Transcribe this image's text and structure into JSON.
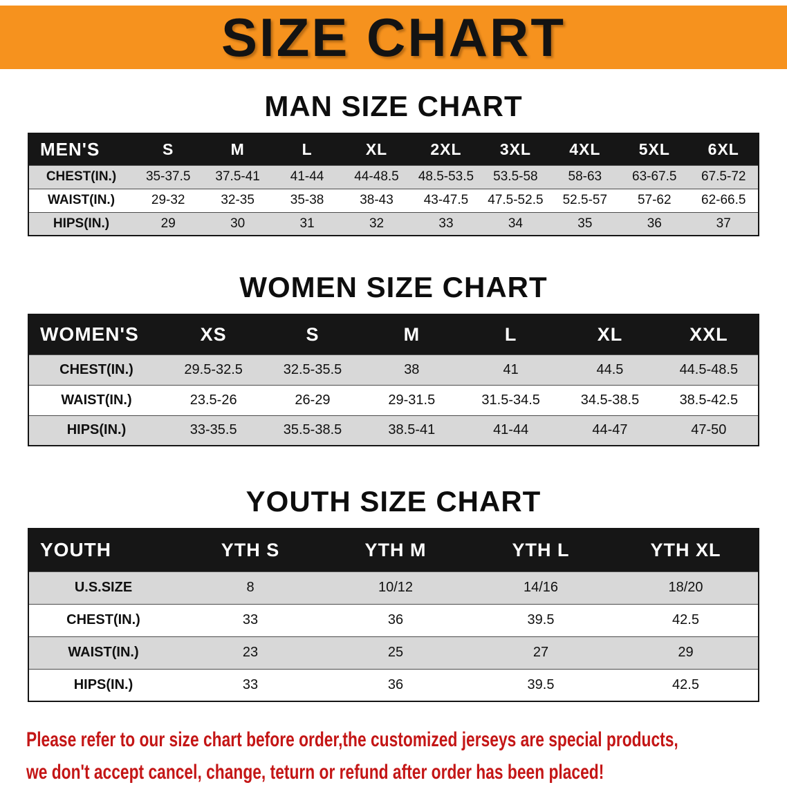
{
  "banner": {
    "title": "SIZE CHART",
    "bg_color": "#F6921E"
  },
  "sections": [
    {
      "heading": "MAN SIZE CHART",
      "table": {
        "header": [
          "MEN'S",
          "S",
          "M",
          "L",
          "XL",
          "2XL",
          "3XL",
          "4XL",
          "5XL",
          "6XL"
        ],
        "rows": [
          {
            "label": "CHEST(IN.)",
            "values": [
              "35-37.5",
              "37.5-41",
              "41-44",
              "44-48.5",
              "48.5-53.5",
              "53.5-58",
              "58-63",
              "63-67.5",
              "67.5-72"
            ]
          },
          {
            "label": "WAIST(IN.)",
            "values": [
              "29-32",
              "32-35",
              "35-38",
              "38-43",
              "43-47.5",
              "47.5-52.5",
              "52.5-57",
              "57-62",
              "62-66.5"
            ]
          },
          {
            "label": "HIPS(IN.)",
            "values": [
              "29",
              "30",
              "31",
              "32",
              "33",
              "34",
              "35",
              "36",
              "37"
            ]
          }
        ]
      }
    },
    {
      "heading": "WOMEN SIZE CHART",
      "table": {
        "header": [
          "WOMEN'S",
          "XS",
          "S",
          "M",
          "L",
          "XL",
          "XXL"
        ],
        "rows": [
          {
            "label": "CHEST(IN.)",
            "values": [
              "29.5-32.5",
              "32.5-35.5",
              "38",
              "41",
              "44.5",
              "44.5-48.5"
            ]
          },
          {
            "label": "WAIST(IN.)",
            "values": [
              "23.5-26",
              "26-29",
              "29-31.5",
              "31.5-34.5",
              "34.5-38.5",
              "38.5-42.5"
            ]
          },
          {
            "label": "HIPS(IN.)",
            "values": [
              "33-35.5",
              "35.5-38.5",
              "38.5-41",
              "41-44",
              "44-47",
              "47-50"
            ]
          }
        ]
      }
    },
    {
      "heading": "YOUTH SIZE CHART",
      "table": {
        "header": [
          "YOUTH",
          "YTH S",
          "YTH M",
          "YTH L",
          "YTH XL"
        ],
        "rows": [
          {
            "label": "U.S.SIZE",
            "values": [
              "8",
              "10/12",
              "14/16",
              "18/20"
            ]
          },
          {
            "label": "CHEST(IN.)",
            "values": [
              "33",
              "36",
              "39.5",
              "42.5"
            ]
          },
          {
            "label": "WAIST(IN.)",
            "values": [
              "23",
              "25",
              "27",
              "29"
            ]
          },
          {
            "label": "HIPS(IN.)",
            "values": [
              "33",
              "36",
              "39.5",
              "42.5"
            ]
          }
        ]
      }
    }
  ],
  "disclaimer": {
    "line1": "Please refer to our size chart before order,the customized jerseys are special products,",
    "line2": "we don't accept cancel, change, teturn or refund after order has been placed!",
    "color": "#c41616"
  }
}
